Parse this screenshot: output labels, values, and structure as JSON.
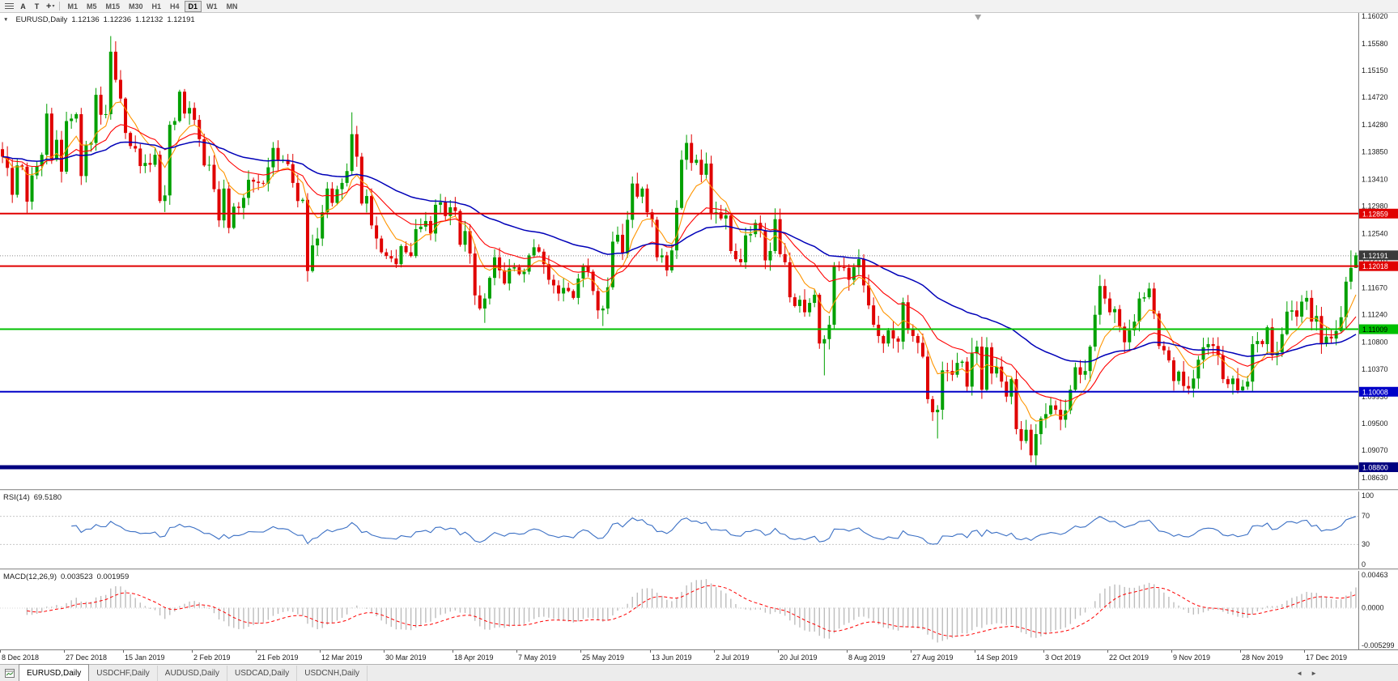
{
  "icons": {
    "collapse": "▼",
    "dropdown": "▾",
    "cursor": "+",
    "menu": "≡"
  },
  "toolbar": {
    "tool_buttons": [
      {
        "label": "A"
      },
      {
        "label": "T"
      }
    ],
    "timeframes": [
      {
        "label": "M1",
        "active": false
      },
      {
        "label": "M5",
        "active": false
      },
      {
        "label": "M15",
        "active": false
      },
      {
        "label": "M30",
        "active": false
      },
      {
        "label": "H1",
        "active": false
      },
      {
        "label": "H4",
        "active": false
      },
      {
        "label": "D1",
        "active": true
      },
      {
        "label": "W1",
        "active": false
      },
      {
        "label": "MN",
        "active": false
      }
    ]
  },
  "price_chart": {
    "title": "EURUSD,Daily",
    "ohlc": {
      "open": "1.12136",
      "high": "1.12236",
      "low": "1.12132",
      "close": "1.12191"
    }
  },
  "rsi_panel": {
    "name": "RSI(14)",
    "value": "69.5180"
  },
  "macd_panel": {
    "name": "MACD(12,26,9)",
    "main_value": "0.003523",
    "signal_value": "0.001959"
  },
  "tab_bar": {
    "scroll_left": "◄",
    "scroll_right": "►",
    "tabs": [
      {
        "label": "EURUSD,Daily",
        "active": true
      },
      {
        "label": "USDCHF,Daily",
        "active": false
      },
      {
        "label": "AUDUSD,Daily",
        "active": false
      },
      {
        "label": "USDCAD,Daily",
        "active": false
      },
      {
        "label": "USDCNH,Daily",
        "active": false
      }
    ]
  },
  "chart_data": {
    "type": "candlestick",
    "symbol": "EURUSD",
    "period": "Daily",
    "up_color": "#00A000",
    "down_color": "#E00000",
    "y_range": [
      1.0845,
      1.1607
    ],
    "y_axis_labels": [
      "1.16020",
      "1.15580",
      "1.15150",
      "1.14720",
      "1.14280",
      "1.13850",
      "1.13410",
      "1.12980",
      "1.12540",
      "1.12110",
      "1.11670",
      "1.11240",
      "1.10800",
      "1.10370",
      "1.09930",
      "1.09500",
      "1.09070",
      "1.08630"
    ],
    "x_labels": [
      {
        "text": "8 Dec 2018",
        "i": 0
      },
      {
        "text": "27 Dec 2018",
        "i": 13
      },
      {
        "text": "15 Jan 2019",
        "i": 25
      },
      {
        "text": "2 Feb 2019",
        "i": 39
      },
      {
        "text": "21 Feb 2019",
        "i": 52
      },
      {
        "text": "12 Mar 2019",
        "i": 65
      },
      {
        "text": "30 Mar 2019",
        "i": 78
      },
      {
        "text": "18 Apr 2019",
        "i": 92
      },
      {
        "text": "7 May 2019",
        "i": 105
      },
      {
        "text": "25 May 2019",
        "i": 118
      },
      {
        "text": "13 Jun 2019",
        "i": 132
      },
      {
        "text": "2 Jul 2019",
        "i": 145
      },
      {
        "text": "20 Jul 2019",
        "i": 158
      },
      {
        "text": "8 Aug 2019",
        "i": 172
      },
      {
        "text": "27 Aug 2019",
        "i": 185
      },
      {
        "text": "14 Sep 2019",
        "i": 198
      },
      {
        "text": "3 Oct 2019",
        "i": 212
      },
      {
        "text": "22 Oct 2019",
        "i": 225
      },
      {
        "text": "9 Nov 2019",
        "i": 238
      },
      {
        "text": "28 Nov 2019",
        "i": 252
      },
      {
        "text": "17 Dec 2019",
        "i": 265
      }
    ],
    "closes": [
      1.1377,
      1.1359,
      1.1316,
      1.1363,
      1.1361,
      1.1305,
      1.1347,
      1.1362,
      1.138,
      1.1446,
      1.1372,
      1.1404,
      1.1353,
      1.1434,
      1.1438,
      1.1445,
      1.1346,
      1.1396,
      1.1399,
      1.1476,
      1.1444,
      1.1445,
      1.1545,
      1.15,
      1.147,
      1.1415,
      1.1394,
      1.139,
      1.1362,
      1.1367,
      1.1364,
      1.138,
      1.1306,
      1.1315,
      1.1428,
      1.1434,
      1.1481,
      1.1446,
      1.1455,
      1.1436,
      1.1405,
      1.1363,
      1.1364,
      1.1325,
      1.1275,
      1.1326,
      1.1263,
      1.1297,
      1.1295,
      1.1311,
      1.134,
      1.1337,
      1.1335,
      1.1334,
      1.136,
      1.1391,
      1.1371,
      1.1372,
      1.1365,
      1.1335,
      1.1306,
      1.1308,
      1.1194,
      1.1235,
      1.1246,
      1.1288,
      1.1326,
      1.1303,
      1.1325,
      1.1335,
      1.1354,
      1.1413,
      1.1377,
      1.1302,
      1.1314,
      1.1267,
      1.1246,
      1.1224,
      1.1218,
      1.1214,
      1.1205,
      1.1234,
      1.1224,
      1.1218,
      1.1261,
      1.1265,
      1.1274,
      1.1254,
      1.13,
      1.1304,
      1.1282,
      1.1296,
      1.129,
      1.1236,
      1.1258,
      1.1222,
      1.1155,
      1.1134,
      1.115,
      1.1183,
      1.1216,
      1.1195,
      1.1174,
      1.1198,
      1.12,
      1.1189,
      1.1193,
      1.1219,
      1.1232,
      1.1225,
      1.1205,
      1.118,
      1.1171,
      1.1158,
      1.1167,
      1.1162,
      1.1151,
      1.1182,
      1.1201,
      1.1193,
      1.1162,
      1.1131,
      1.1134,
      1.1168,
      1.1241,
      1.1252,
      1.1222,
      1.1276,
      1.1334,
      1.1313,
      1.1326,
      1.1288,
      1.1276,
      1.1216,
      1.1219,
      1.1195,
      1.1227,
      1.1295,
      1.1372,
      1.1399,
      1.1367,
      1.1372,
      1.1348,
      1.1366,
      1.1285,
      1.1288,
      1.1278,
      1.1283,
      1.1226,
      1.1213,
      1.1208,
      1.1251,
      1.1253,
      1.1271,
      1.1259,
      1.1211,
      1.1226,
      1.1277,
      1.1221,
      1.1208,
      1.1152,
      1.1138,
      1.1148,
      1.1128,
      1.1143,
      1.1156,
      1.1078,
      1.1085,
      1.1108,
      1.1203,
      1.12,
      1.1199,
      1.118,
      1.12,
      1.1213,
      1.1171,
      1.1139,
      1.1108,
      1.109,
      1.1078,
      1.1099,
      1.1086,
      1.1081,
      1.1144,
      1.1101,
      1.109,
      1.1079,
      1.1057,
      1.0989,
      1.0968,
      1.0972,
      1.1035,
      1.1034,
      1.1028,
      1.1047,
      1.1049,
      1.1009,
      1.1062,
      1.1073,
      1.1004,
      1.1072,
      1.103,
      1.1041,
      1.1017,
      1.0993,
      1.1021,
      1.0941,
      1.0922,
      1.094,
      1.0899,
      1.0933,
      1.0958,
      1.0965,
      1.0979,
      1.0972,
      1.0956,
      1.0971,
      1.1004,
      1.104,
      1.1028,
      1.1034,
      1.1073,
      1.1124,
      1.117,
      1.115,
      1.1128,
      1.1133,
      1.1105,
      1.108,
      1.1099,
      1.1113,
      1.115,
      1.1152,
      1.1166,
      1.1126,
      1.1074,
      1.1067,
      1.1051,
      1.1018,
      1.1033,
      1.101,
      1.1006,
      1.1022,
      1.1052,
      1.1072,
      1.1077,
      1.1074,
      1.1059,
      1.1021,
      1.1013,
      1.1022,
      1.1003,
      1.1009,
      1.1017,
      1.1077,
      1.1082,
      1.1077,
      1.1104,
      1.1059,
      1.1064,
      1.1093,
      1.1129,
      1.1131,
      1.1121,
      1.1145,
      1.1151,
      1.1113,
      1.1122,
      1.1078,
      1.1089,
      1.1086,
      1.1098,
      1.112,
      1.1177,
      1.1199,
      1.12191
    ],
    "wick_overrides": {
      "high": {
        "22": 1.157,
        "71": 1.1448,
        "139": 1.1412,
        "197": 1.1087,
        "274": 1.1227,
        "275": 1.12236
      },
      "low": {
        "62": 1.1177,
        "98": 1.1111,
        "122": 1.1106,
        "167": 1.1027,
        "190": 1.0926,
        "210": 1.0879,
        "275": 1.12132
      }
    },
    "moving_averages": [
      {
        "period": 8,
        "color": "#FF9500",
        "width": 1.1
      },
      {
        "period": 21,
        "color": "#FF0000",
        "width": 1.1
      },
      {
        "period": 55,
        "color": "#0000B8",
        "width": 1.5
      }
    ],
    "levels": [
      {
        "price": 1.12859,
        "label": "1.12859",
        "color": "#E00000",
        "thickness": 2,
        "text_color": "#FFFFFF"
      },
      {
        "price": 1.12018,
        "label": "1.12018",
        "color": "#E00000",
        "thickness": 2,
        "text_color": "#FFFFFF"
      },
      {
        "price": 1.11009,
        "label": "1.11009",
        "color": "#00C000",
        "thickness": 2,
        "text_color": "#000000"
      },
      {
        "price": 1.10008,
        "label": "1.10008",
        "color": "#0000C8",
        "thickness": 2,
        "text_color": "#FFFFFF"
      },
      {
        "price": 1.088,
        "label": "1.08800",
        "color": "#000080",
        "thickness": 5,
        "text_color": "#FFFFFF"
      }
    ],
    "current_price": {
      "value": 1.12191,
      "label": "1.12191",
      "box_color": "#3A3A3A",
      "line_color": "#8A8A8A"
    },
    "rsi": {
      "period": 14,
      "last": 69.518,
      "color": "#3A6FC4",
      "y_axis": [
        {
          "label": "100",
          "value": 100
        },
        {
          "label": "70",
          "value": 70
        },
        {
          "label": "30",
          "value": 30
        },
        {
          "label": "0",
          "value": 0
        }
      ],
      "dashed_levels": [
        70,
        30
      ]
    },
    "macd": {
      "fast": 12,
      "slow": 26,
      "signal": 9,
      "main_last": 0.003523,
      "signal_last": 0.001959,
      "histogram_color": "#BDBDBD",
      "signal_color": "#FF0000",
      "y_axis": [
        {
          "label": "0.00463",
          "value": 0.00463
        },
        {
          "label": "0.0000",
          "value": 0
        },
        {
          "label": "-0.005299",
          "value": -0.005299
        }
      ]
    }
  }
}
